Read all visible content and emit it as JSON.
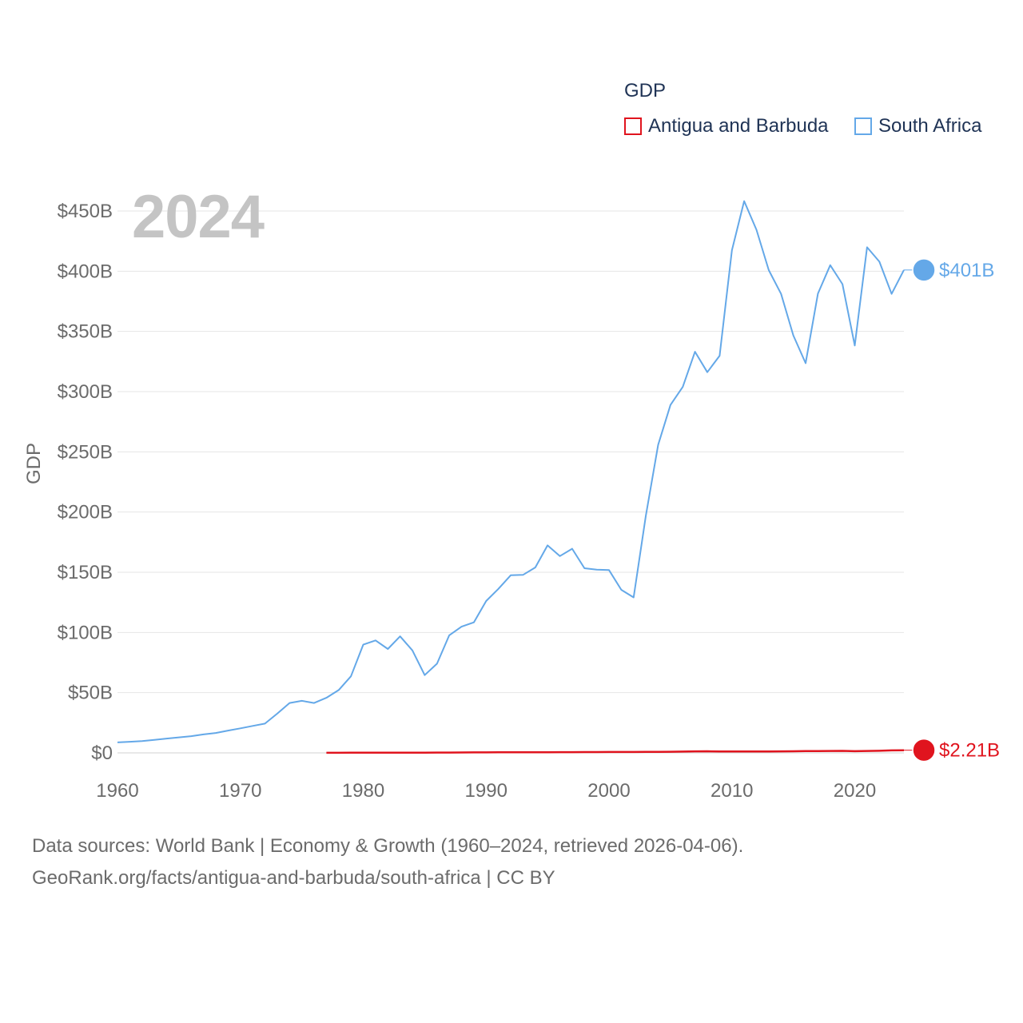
{
  "legend": {
    "title": "GDP",
    "items": [
      {
        "label": "Antigua and Barbuda",
        "color": "#e0141e"
      },
      {
        "label": "South Africa",
        "color": "#64a8e8"
      }
    ]
  },
  "year_label": "2024",
  "footer": {
    "line1": "Data sources: World Bank | Economy & Growth (1960–2024, retrieved 2026-04-06).",
    "line2": "GeoRank.org/facts/antigua-and-barbuda/south-africa | CC BY"
  },
  "chart_data": {
    "type": "line",
    "title": "GDP",
    "xlabel": "",
    "ylabel": "GDP",
    "xlim": [
      1960,
      2024
    ],
    "ylim": [
      0,
      450
    ],
    "grid": true,
    "legend_position": "top-right",
    "x_ticks": [
      1960,
      1970,
      1980,
      1990,
      2000,
      2010,
      2020
    ],
    "x_tick_labels": [
      "1960",
      "1970",
      "1980",
      "1990",
      "2000",
      "2010",
      "2020"
    ],
    "y_ticks": [
      0,
      50,
      100,
      150,
      200,
      250,
      300,
      350,
      400,
      450
    ],
    "y_tick_labels": [
      "$0",
      "$50B",
      "$100B",
      "$150B",
      "$200B",
      "$250B",
      "$300B",
      "$350B",
      "$400B",
      "$450B"
    ],
    "series": [
      {
        "name": "South Africa",
        "color": "#64a8e8",
        "end_label": "$401B",
        "x": [
          1960,
          1961,
          1962,
          1963,
          1964,
          1965,
          1966,
          1967,
          1968,
          1969,
          1970,
          1971,
          1972,
          1973,
          1974,
          1975,
          1976,
          1977,
          1978,
          1979,
          1980,
          1981,
          1982,
          1983,
          1984,
          1985,
          1986,
          1987,
          1988,
          1989,
          1990,
          1991,
          1992,
          1993,
          1994,
          1995,
          1996,
          1997,
          1998,
          1999,
          2000,
          2001,
          2002,
          2003,
          2004,
          2005,
          2006,
          2007,
          2008,
          2009,
          2010,
          2011,
          2012,
          2013,
          2014,
          2015,
          2016,
          2017,
          2018,
          2019,
          2020,
          2021,
          2022,
          2023,
          2024
        ],
        "values": [
          8.7,
          9.2,
          9.8,
          10.8,
          11.9,
          12.9,
          13.9,
          15.3,
          16.5,
          18.5,
          20.4,
          22.4,
          24.3,
          32.6,
          41.4,
          43.2,
          41.4,
          45.7,
          52.2,
          63.6,
          89.9,
          93.4,
          86.3,
          96.8,
          85.1,
          64.6,
          74.1,
          97.6,
          104.8,
          108.4,
          126.1,
          136.2,
          147.5,
          147.8,
          154.0,
          172.3,
          163.4,
          169.5,
          153.3,
          152.1,
          151.8,
          135.4,
          129.1,
          197.0,
          255.8,
          288.9,
          303.9,
          333.1,
          316.1,
          329.8,
          417.4,
          458.2,
          434.4,
          400.9,
          381.2,
          346.7,
          323.6,
          381.4,
          405.0,
          389.3,
          338.3,
          419.9,
          407.9,
          381.2,
          401.0
        ]
      },
      {
        "name": "Antigua and Barbuda",
        "color": "#e0141e",
        "end_label": "$2.21B",
        "x": [
          1977,
          1978,
          1979,
          1980,
          1981,
          1982,
          1983,
          1984,
          1985,
          1986,
          1987,
          1988,
          1989,
          1990,
          1991,
          1992,
          1993,
          1994,
          1995,
          1996,
          1997,
          1998,
          1999,
          2000,
          2001,
          2002,
          2003,
          2004,
          2005,
          2006,
          2007,
          2008,
          2009,
          2010,
          2011,
          2012,
          2013,
          2014,
          2015,
          2016,
          2017,
          2018,
          2019,
          2020,
          2021,
          2022,
          2023,
          2024
        ],
        "values": [
          0.08,
          0.09,
          0.1,
          0.12,
          0.13,
          0.14,
          0.16,
          0.18,
          0.21,
          0.25,
          0.29,
          0.33,
          0.38,
          0.42,
          0.44,
          0.46,
          0.49,
          0.54,
          0.53,
          0.57,
          0.61,
          0.65,
          0.69,
          0.72,
          0.72,
          0.75,
          0.79,
          0.86,
          0.96,
          1.09,
          1.23,
          1.3,
          1.16,
          1.15,
          1.14,
          1.21,
          1.19,
          1.27,
          1.34,
          1.44,
          1.47,
          1.61,
          1.69,
          1.42,
          1.56,
          1.75,
          2.03,
          2.21
        ]
      }
    ]
  }
}
